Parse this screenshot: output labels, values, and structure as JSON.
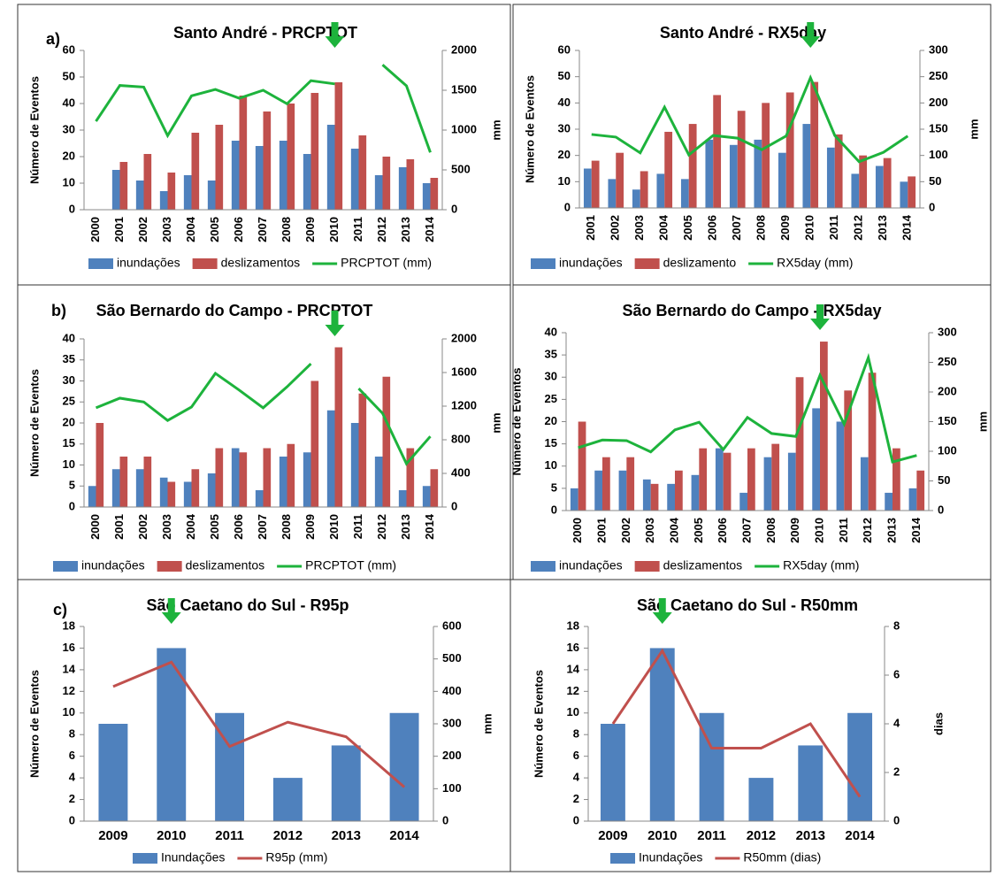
{
  "chart_data": [
    {
      "type": "combo",
      "panel_label": "a)",
      "title": "Santo André - PRCPTOT",
      "y_label": "Número de Eventos",
      "y2_label": "mm",
      "categories": [
        "2000",
        "2001",
        "2002",
        "2003",
        "2004",
        "2005",
        "2006",
        "2007",
        "2008",
        "2009",
        "2010",
        "2011",
        "2012",
        "2013",
        "2014"
      ],
      "series": [
        {
          "name": "inundações",
          "mark": "bar",
          "color": "#4f81bd",
          "values": [
            null,
            15,
            11,
            7,
            13,
            11,
            26,
            24,
            26,
            21,
            32,
            23,
            13,
            16,
            10
          ]
        },
        {
          "name": "deslizamentos",
          "mark": "bar",
          "color": "#c0504d",
          "values": [
            null,
            18,
            21,
            14,
            29,
            32,
            43,
            37,
            40,
            44,
            48,
            28,
            20,
            19,
            12
          ]
        },
        {
          "name": "PRCPTOT (mm)",
          "mark": "line",
          "axis": "y2",
          "color": "#1db33c",
          "values": [
            1110,
            1560,
            1540,
            930,
            1430,
            1510,
            1400,
            1500,
            1330,
            1620,
            1580,
            null,
            1820,
            1555,
            720
          ]
        }
      ],
      "ylim": [
        0,
        60
      ],
      "yticks": [
        0,
        10,
        20,
        30,
        40,
        50,
        60
      ],
      "y2lim": [
        0,
        2000
      ],
      "y2ticks": [
        0,
        500,
        1000,
        1500,
        2000
      ]
    },
    {
      "type": "combo",
      "title": "Santo André - RX5day",
      "y_label": "Número de Eventos",
      "y2_label": "mm",
      "categories": [
        "2001",
        "2002",
        "2003",
        "2004",
        "2005",
        "2006",
        "2007",
        "2008",
        "2009",
        "2010",
        "2011",
        "2012",
        "2013",
        "2014"
      ],
      "series": [
        {
          "name": "inundações",
          "mark": "bar",
          "color": "#4f81bd",
          "values": [
            15,
            11,
            7,
            13,
            11,
            26,
            24,
            26,
            21,
            32,
            23,
            13,
            16,
            10
          ]
        },
        {
          "name": "deslizamento",
          "mark": "bar",
          "color": "#c0504d",
          "values": [
            18,
            21,
            14,
            29,
            32,
            43,
            37,
            40,
            44,
            48,
            28,
            20,
            19,
            12
          ]
        },
        {
          "name": "RX5day (mm)",
          "mark": "line",
          "axis": "y2",
          "color": "#1db33c",
          "values": [
            140,
            135,
            105,
            192,
            101,
            138,
            133,
            111,
            137,
            248,
            138,
            88,
            106,
            137
          ]
        }
      ],
      "ylim": [
        0,
        60
      ],
      "yticks": [
        0,
        10,
        20,
        30,
        40,
        50,
        60
      ],
      "y2lim": [
        0,
        300
      ],
      "y2ticks": [
        0,
        50,
        100,
        150,
        200,
        250,
        300
      ]
    },
    {
      "type": "combo",
      "panel_label": "b)",
      "title": "São Bernardo do Campo - PRCPTOT",
      "y_label": "Número de Eventos",
      "y2_label": "mm",
      "categories": [
        "2000",
        "2001",
        "2002",
        "2003",
        "2004",
        "2005",
        "2006",
        "2007",
        "2008",
        "2009",
        "2010",
        "2011",
        "2012",
        "2013",
        "2014"
      ],
      "series": [
        {
          "name": "inundações",
          "mark": "bar",
          "color": "#4f81bd",
          "values": [
            5,
            9,
            9,
            7,
            6,
            8,
            14,
            4,
            12,
            13,
            23,
            20,
            12,
            4,
            5
          ]
        },
        {
          "name": "deslizamentos",
          "mark": "bar",
          "color": "#c0504d",
          "values": [
            20,
            12,
            12,
            6,
            9,
            14,
            13,
            14,
            15,
            30,
            38,
            27,
            31,
            14,
            9
          ]
        },
        {
          "name": "PRCPTOT (mm)",
          "mark": "line",
          "axis": "y2",
          "color": "#1db33c",
          "values": [
            1180,
            1295,
            1250,
            1030,
            1190,
            1590,
            1390,
            1180,
            1430,
            1705,
            null,
            1410,
            1115,
            515,
            840
          ]
        }
      ],
      "ylim": [
        0,
        40
      ],
      "yticks": [
        0,
        5,
        10,
        15,
        20,
        25,
        30,
        35,
        40
      ],
      "y2lim": [
        0,
        2000
      ],
      "y2ticks": [
        0,
        400,
        800,
        1200,
        1600,
        2000
      ]
    },
    {
      "type": "combo",
      "title": "São Bernardo do Campo - RX5day",
      "y_label": "Número de Eventos",
      "y2_label": "mm",
      "categories": [
        "2000",
        "2001",
        "2002",
        "2003",
        "2004",
        "2005",
        "2006",
        "2007",
        "2008",
        "2009",
        "2010",
        "2011",
        "2012",
        "2013",
        "2014"
      ],
      "series": [
        {
          "name": "inundações",
          "mark": "bar",
          "color": "#4f81bd",
          "values": [
            5,
            9,
            9,
            7,
            6,
            8,
            14,
            4,
            12,
            13,
            23,
            20,
            12,
            4,
            5
          ]
        },
        {
          "name": "deslizamentos",
          "mark": "bar",
          "color": "#c0504d",
          "values": [
            20,
            12,
            12,
            6,
            9,
            14,
            13,
            14,
            15,
            30,
            38,
            27,
            31,
            14,
            9
          ]
        },
        {
          "name": "RX5day (mm)",
          "mark": "line",
          "axis": "y2",
          "color": "#1db33c",
          "values": [
            106,
            119,
            118,
            99,
            136,
            149,
            103,
            157,
            130,
            125,
            228,
            146,
            258,
            82,
            93
          ]
        }
      ],
      "ylim": [
        0,
        40
      ],
      "yticks": [
        0,
        5,
        10,
        15,
        20,
        25,
        30,
        35,
        40
      ],
      "y2lim": [
        0,
        300
      ],
      "y2ticks": [
        0,
        50,
        100,
        150,
        200,
        250,
        300
      ]
    },
    {
      "type": "combo",
      "panel_label": "c)",
      "title": "São Caetano do Sul - R95p",
      "y_label": "Número de Eventos",
      "y2_label": "mm",
      "categories": [
        "2009",
        "2010",
        "2011",
        "2012",
        "2013",
        "2014"
      ],
      "series": [
        {
          "name": "Inundações",
          "mark": "bar",
          "color": "#4f81bd",
          "values": [
            9,
            16,
            10,
            4,
            7,
            10
          ]
        },
        {
          "name": "R95p (mm)",
          "mark": "line",
          "axis": "y2",
          "color": "#c0504d",
          "values": [
            415,
            490,
            230,
            305,
            260,
            105
          ]
        }
      ],
      "ylim": [
        0,
        18
      ],
      "yticks": [
        0,
        2,
        4,
        6,
        8,
        10,
        12,
        14,
        16,
        18
      ],
      "y2lim": [
        0,
        600
      ],
      "y2ticks": [
        0,
        100,
        200,
        300,
        400,
        500,
        600
      ]
    },
    {
      "type": "combo",
      "title": "São Caetano do Sul - R50mm",
      "y_label": "Número de Eventos",
      "y2_label": "dias",
      "categories": [
        "2009",
        "2010",
        "2011",
        "2012",
        "2013",
        "2014"
      ],
      "series": [
        {
          "name": "Inundações",
          "mark": "bar",
          "color": "#4f81bd",
          "values": [
            9,
            16,
            10,
            4,
            7,
            10
          ]
        },
        {
          "name": "R50mm (dias)",
          "mark": "line",
          "axis": "y2",
          "color": "#c0504d",
          "values": [
            4,
            7,
            3,
            3,
            4,
            1
          ]
        }
      ],
      "ylim": [
        0,
        18
      ],
      "yticks": [
        0,
        2,
        4,
        6,
        8,
        10,
        12,
        14,
        16,
        18
      ],
      "y2lim": [
        0,
        8
      ],
      "y2ticks": [
        0,
        2,
        4,
        6,
        8
      ]
    }
  ]
}
